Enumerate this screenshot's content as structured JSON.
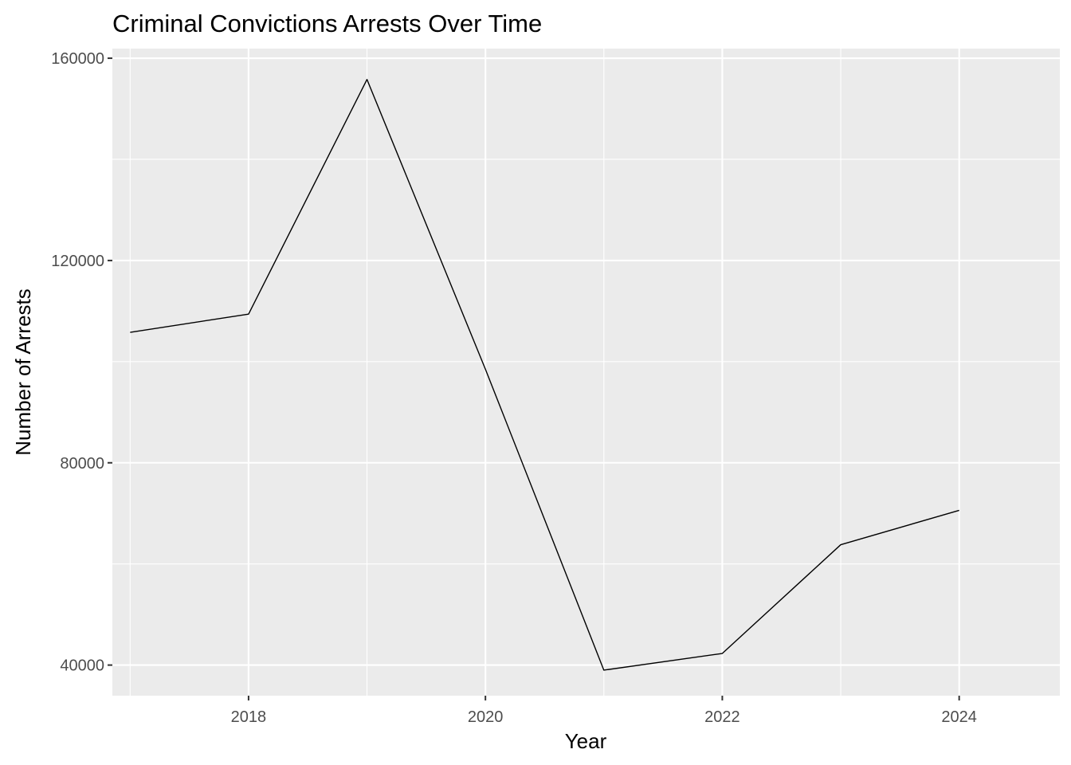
{
  "chart_data": {
    "type": "line",
    "title": "Criminal Convictions Arrests Over Time",
    "xlabel": "Year",
    "ylabel": "Number of Arrests",
    "x": [
      2017,
      2018,
      2019,
      2020,
      2021,
      2022,
      2023,
      2024
    ],
    "series": [
      {
        "values": [
          105800,
          109400,
          155800,
          98500,
          39000,
          42300,
          63800,
          70600
        ]
      }
    ],
    "xlim": [
      2016.85,
      2024.85
    ],
    "ylim": [
      33950,
      161900
    ],
    "x_ticks": [
      2018,
      2020,
      2022,
      2024
    ],
    "x_tick_labels": [
      "2018",
      "2020",
      "2022",
      "2024"
    ],
    "y_ticks": [
      40000,
      80000,
      120000,
      160000
    ],
    "y_tick_labels": [
      "40000",
      "80000",
      "120000",
      "160000"
    ],
    "x_minor_ticks": [
      2017,
      2019,
      2021,
      2023
    ],
    "y_minor_ticks": [
      60000,
      100000,
      140000
    ],
    "grid": true,
    "legend": "none",
    "colors": {
      "panel_background": "#ebebeb",
      "grid_line": "#ffffff",
      "series_line": "#000000",
      "tick_label": "#4d4d4d"
    }
  }
}
